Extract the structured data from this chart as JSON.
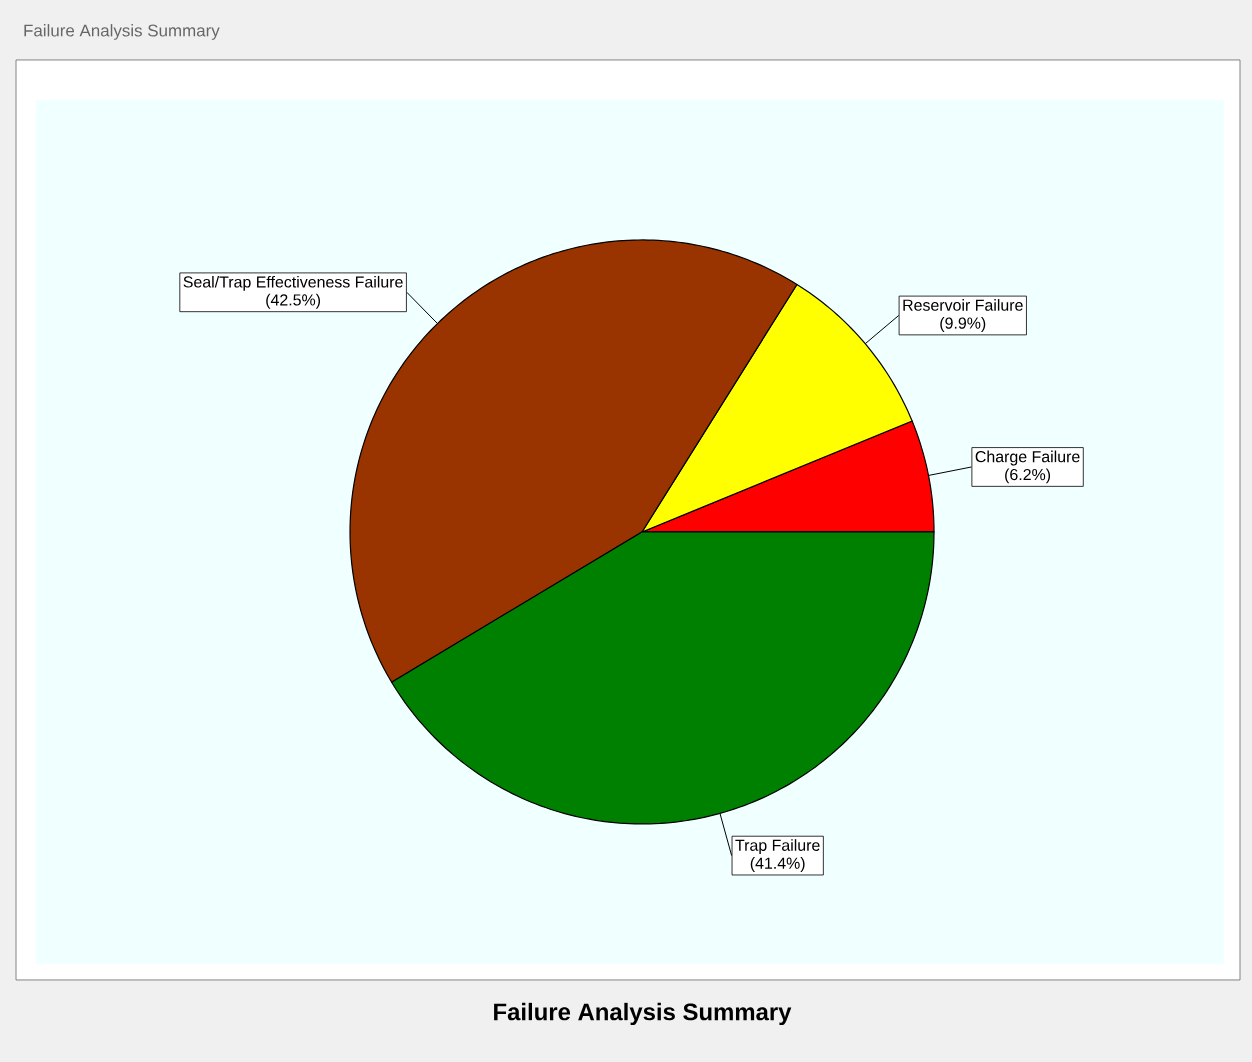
{
  "chart_data": {
    "type": "pie",
    "title": "Failure Analysis Summary",
    "annotations": [
      "Failure Analysis Summary"
    ],
    "categories": [
      "Charge Failure",
      "Reservoir Failure",
      "Seal/Trap Effectiveness Failure",
      "Trap Failure"
    ],
    "values": [
      6.2,
      9.9,
      42.5,
      41.4
    ],
    "value_labels": [
      "(6.2%)",
      "(9.9%)",
      "(42.5%)",
      "(41.4%)"
    ],
    "colors": [
      "#ff0000",
      "#ffff00",
      "#993300",
      "#008000"
    ]
  }
}
